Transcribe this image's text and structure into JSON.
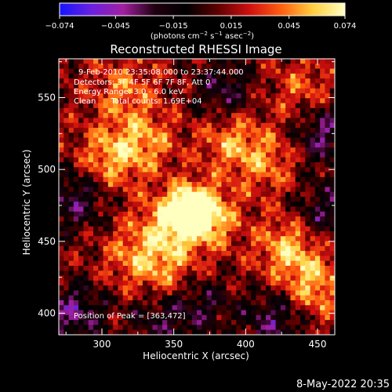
{
  "chart_data": {
    "type": "heatmap",
    "title": "Reconstructed RHESSI Image",
    "xlabel": "Heliocentric X (arcsec)",
    "ylabel": "Heliocentric Y (arcsec)",
    "xlim": [
      270,
      462
    ],
    "ylim": [
      385,
      577
    ],
    "x_ticks": [
      300,
      350,
      400,
      450
    ],
    "y_ticks": [
      400,
      450,
      500,
      550
    ],
    "colorbar": {
      "range": [
        -0.074,
        0.074
      ],
      "ticks": [
        "−0.074",
        "−0.045",
        "−0.015",
        "0.015",
        "0.045",
        "0.074"
      ],
      "tick_values": [
        -0.074,
        -0.045,
        -0.015,
        0.015,
        0.045,
        0.074
      ],
      "label_main": "(photons cm",
      "label_exp1": "−2",
      "label_mid1": " s",
      "label_exp2": "−1",
      "label_mid2": " asec",
      "label_exp3": "−2",
      "label_end": ")",
      "colors": [
        "#1515ff",
        "#6a20e0",
        "#a020a0",
        "#200010",
        "#000000",
        "#600000",
        "#d01010",
        "#ff6010",
        "#ffd040",
        "#ffffc0"
      ]
    },
    "info_lines": [
      "9-Feb-2010 23:35:08.000 to 23:37:44.000",
      "Detectors: 3F 4F 5F 6F 7F 8F, Att 0",
      "Energy Range: 3.0 - 6.0 keV",
      "Clean      Total counts: 1.69E+04"
    ],
    "peak_label": "Position of Peak = [363,472]",
    "peak": [
      363,
      472
    ],
    "peak_value": 0.074,
    "blobs": [
      {
        "x": 363,
        "y": 472,
        "v": 0.07
      },
      {
        "x": 348,
        "y": 463,
        "v": 0.045
      },
      {
        "x": 375,
        "y": 466,
        "v": 0.04
      },
      {
        "x": 430,
        "y": 445,
        "v": 0.045
      },
      {
        "x": 448,
        "y": 418,
        "v": 0.04
      },
      {
        "x": 305,
        "y": 508,
        "v": 0.04
      },
      {
        "x": 330,
        "y": 520,
        "v": 0.035
      },
      {
        "x": 390,
        "y": 520,
        "v": 0.035
      },
      {
        "x": 415,
        "y": 505,
        "v": 0.03
      },
      {
        "x": 322,
        "y": 440,
        "v": 0.03
      },
      {
        "x": 345,
        "y": 430,
        "v": 0.03
      },
      {
        "x": 315,
        "y": 555,
        "v": 0.03
      },
      {
        "x": 440,
        "y": 555,
        "v": 0.025
      },
      {
        "x": 280,
        "y": 400,
        "v": -0.045
      },
      {
        "x": 282,
        "y": 480,
        "v": -0.04
      },
      {
        "x": 455,
        "y": 525,
        "v": -0.045
      },
      {
        "x": 420,
        "y": 395,
        "v": -0.04
      },
      {
        "x": 455,
        "y": 470,
        "v": -0.035
      },
      {
        "x": 385,
        "y": 555,
        "v": -0.035
      },
      {
        "x": 340,
        "y": 395,
        "v": -0.03
      },
      {
        "x": 370,
        "y": 405,
        "v": -0.03
      }
    ]
  },
  "footer": {
    "date": "8-May-2022 20:35"
  }
}
